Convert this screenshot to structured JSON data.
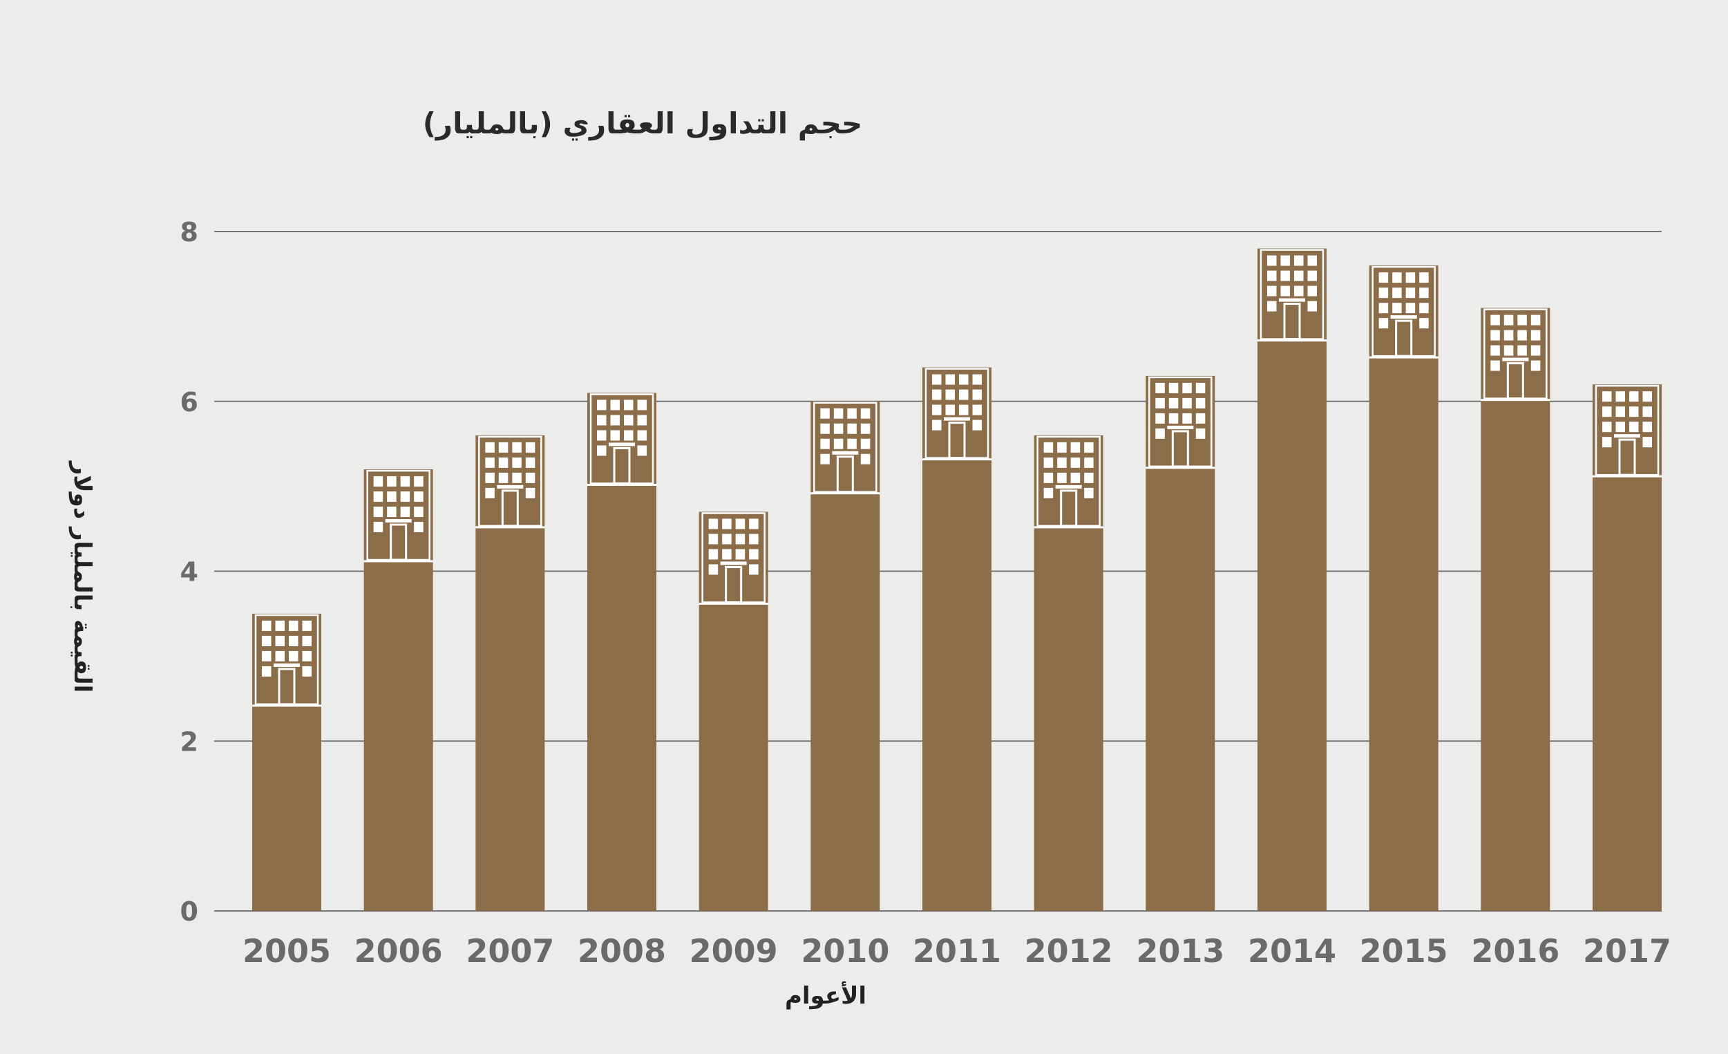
{
  "chart_data": {
    "type": "bar",
    "title": "حجم التداول العقاري (بالمليار)",
    "xlabel": "الأعوام",
    "ylabel": "القيمة بالمليار دولار",
    "categories": [
      "2005",
      "2006",
      "2007",
      "2008",
      "2009",
      "2010",
      "2011",
      "2012",
      "2013",
      "2014",
      "2015",
      "2016",
      "2017"
    ],
    "values": [
      3.5,
      5.2,
      5.6,
      6.1,
      4.7,
      6.0,
      6.4,
      5.6,
      6.3,
      7.8,
      7.6,
      7.1,
      6.2
    ],
    "ylim": [
      0,
      8
    ],
    "yticks": [
      0,
      2,
      4,
      6,
      8
    ],
    "grid": true,
    "legend": "none",
    "colors": {
      "bar": "#8b6d4a",
      "background": "#ececea",
      "grid": "#777777",
      "window": "#ffffff"
    },
    "bar_icon": "building-icon"
  }
}
